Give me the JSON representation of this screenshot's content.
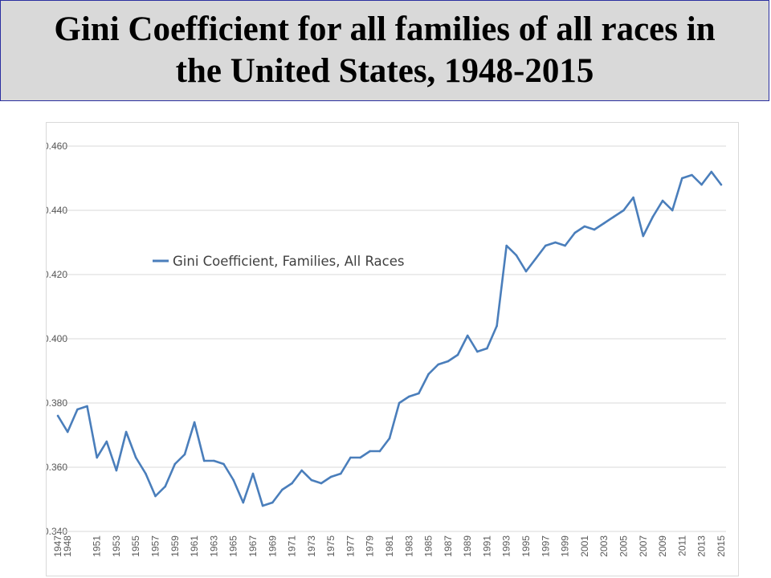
{
  "title": {
    "line1": "Gini Coefficient for all families of all races in",
    "line2": "the United States, 1948-2015"
  },
  "colors": {
    "series": "#4a7ebb",
    "grid": "#d9d9d9",
    "tick_text": "#595959",
    "title_background": "#d9d9d9",
    "title_border": "#2b2fa0"
  },
  "chart_data": {
    "type": "line",
    "title": "",
    "xlabel": "",
    "ylabel": "",
    "ylim": [
      0.34,
      0.46
    ],
    "y_ticks": [
      "0.340",
      "0.360",
      "0.380",
      "0.400",
      "0.420",
      "0.440",
      "0.460"
    ],
    "x_tick_labels": [
      "1947",
      "1948",
      "1951",
      "1953",
      "1955",
      "1957",
      "1959",
      "1961",
      "1963",
      "1965",
      "1967",
      "1969",
      "1971",
      "1973",
      "1975",
      "1977",
      "1979",
      "1981",
      "1983",
      "1985",
      "1987",
      "1989",
      "1991",
      "1993",
      "1995",
      "1997",
      "1999",
      "2001",
      "2003",
      "2005",
      "2007",
      "2009",
      "2011",
      "2013",
      "2015"
    ],
    "grid": true,
    "legend_position": "upper-left",
    "x": [
      "1947",
      "1948",
      "1949",
      "1950",
      "1951",
      "1952",
      "1953",
      "1954",
      "1955",
      "1956",
      "1957",
      "1958",
      "1959",
      "1960",
      "1961",
      "1962",
      "1963",
      "1964",
      "1965",
      "1966",
      "1967",
      "1968",
      "1969",
      "1970",
      "1971",
      "1972",
      "1973",
      "1974",
      "1975",
      "1976",
      "1977",
      "1978",
      "1979",
      "1980",
      "1981",
      "1982",
      "1983",
      "1984",
      "1985",
      "1986",
      "1987",
      "1988",
      "1989",
      "1990",
      "1991",
      "1992",
      "1993",
      "1994",
      "1995",
      "1996",
      "1997",
      "1998",
      "1999",
      "2000",
      "2001",
      "2002",
      "2003",
      "2004",
      "2005",
      "2006",
      "2007",
      "2008",
      "2009",
      "2010",
      "2011",
      "2012",
      "2013",
      "2014",
      "2015"
    ],
    "series": [
      {
        "name": "Gini Coefficient, Families, All Races",
        "values": [
          0.376,
          0.371,
          0.378,
          0.379,
          0.363,
          0.368,
          0.359,
          0.371,
          0.363,
          0.358,
          0.351,
          0.354,
          0.361,
          0.364,
          0.374,
          0.362,
          0.362,
          0.361,
          0.356,
          0.349,
          0.358,
          0.348,
          0.349,
          0.353,
          0.355,
          0.359,
          0.356,
          0.355,
          0.357,
          0.358,
          0.363,
          0.363,
          0.365,
          0.365,
          0.369,
          0.38,
          0.382,
          0.383,
          0.389,
          0.392,
          0.393,
          0.395,
          0.401,
          0.396,
          0.397,
          0.404,
          0.429,
          0.426,
          0.421,
          0.425,
          0.429,
          0.43,
          0.429,
          0.433,
          0.435,
          0.434,
          0.436,
          0.438,
          0.44,
          0.444,
          0.432,
          0.438,
          0.443,
          0.44,
          0.45,
          0.451,
          0.448,
          0.452,
          0.448
        ]
      }
    ]
  }
}
